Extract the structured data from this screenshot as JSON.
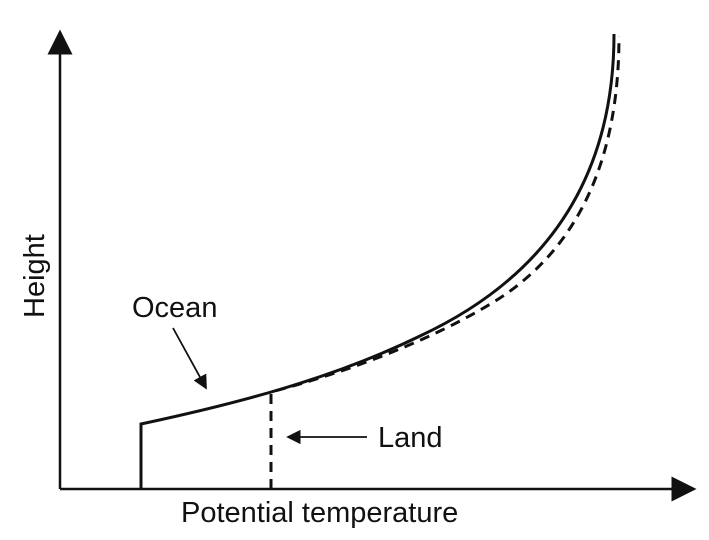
{
  "axes": {
    "x_label": "Potential temperature",
    "y_label": "Height"
  },
  "annotations": {
    "ocean": "Ocean",
    "land": "Land"
  },
  "style": {
    "line_color": "#111111",
    "background": "#ffffff"
  }
}
